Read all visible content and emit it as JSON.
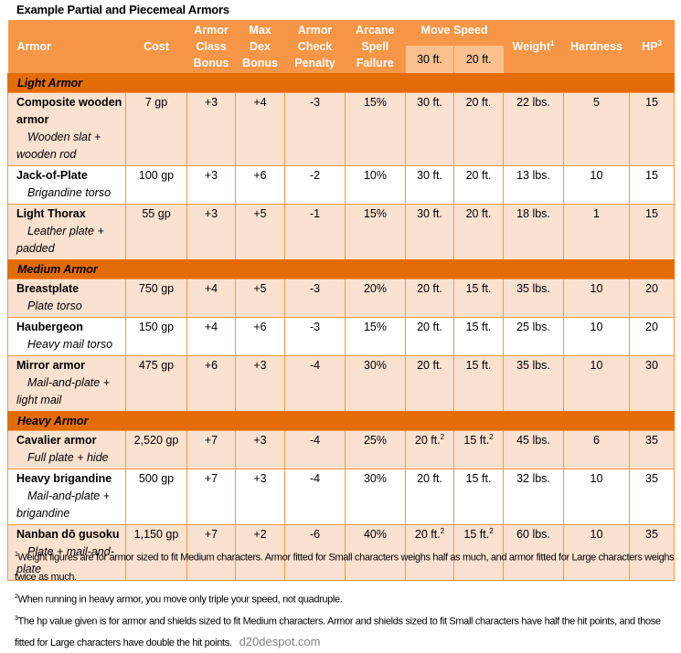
{
  "title": "Example Partial and Piecemeal Armors",
  "colors": {
    "header_bg": "#f79646",
    "subheader_bg": "#fac090",
    "section_bg": "#e36c09",
    "row_shaded": "#fbe2d0",
    "row_plain": "#ffffff",
    "border": "#f79646"
  },
  "headers": {
    "armor": "Armor",
    "cost": "Cost",
    "ac_bonus": [
      "Armor",
      "Class",
      "Bonus"
    ],
    "max_dex": [
      "Max",
      "Dex",
      "Bonus"
    ],
    "acp": [
      "Armor",
      "Check",
      "Penalty"
    ],
    "asf": [
      "Arcane",
      "Spell",
      "Failure"
    ],
    "move_speed": "Move Speed",
    "speed_30": "30 ft.",
    "speed_20": "20 ft.",
    "weight": "Weight",
    "weight_sup": "1",
    "hardness": "Hardness",
    "hp": "HP",
    "hp_sup": "3"
  },
  "sections": [
    {
      "label": "Light Armor",
      "rows": [
        {
          "name": "Composite wooden armor",
          "desc": "Wooden slat + wooden rod",
          "cost": "7 gp",
          "ac": "+3",
          "maxdex": "+4",
          "acp": "-3",
          "asf": "15%",
          "s30": "30 ft.",
          "s30_sup": "",
          "s20": "20 ft.",
          "s20_sup": "",
          "weight": "22 lbs.",
          "hardness": "5",
          "hp": "15"
        },
        {
          "name": "Jack-of-Plate",
          "desc": "Brigandine torso",
          "cost": "100 gp",
          "ac": "+3",
          "maxdex": "+6",
          "acp": "-2",
          "asf": "10%",
          "s30": "30 ft.",
          "s30_sup": "",
          "s20": "20 ft.",
          "s20_sup": "",
          "weight": "13 lbs.",
          "hardness": "10",
          "hp": "15"
        },
        {
          "name": "Light Thorax",
          "desc": "Leather plate + padded",
          "cost": "55 gp",
          "ac": "+3",
          "maxdex": "+5",
          "acp": "-1",
          "asf": "15%",
          "s30": "30 ft.",
          "s30_sup": "",
          "s20": "20 ft.",
          "s20_sup": "",
          "weight": "18 lbs.",
          "hardness": "1",
          "hp": "15"
        }
      ]
    },
    {
      "label": "Medium Armor",
      "rows": [
        {
          "name": "Breastplate",
          "desc": "Plate torso",
          "cost": "750 gp",
          "ac": "+4",
          "maxdex": "+5",
          "acp": "-3",
          "asf": "20%",
          "s30": "20 ft.",
          "s30_sup": "",
          "s20": "15 ft.",
          "s20_sup": "",
          "weight": "35 lbs.",
          "hardness": "10",
          "hp": "20"
        },
        {
          "name": "Haubergeon",
          "desc": "Heavy mail torso",
          "cost": "150 gp",
          "ac": "+4",
          "maxdex": "+6",
          "acp": "-3",
          "asf": "15%",
          "s30": "20 ft.",
          "s30_sup": "",
          "s20": "15 ft.",
          "s20_sup": "",
          "weight": "25 lbs.",
          "hardness": "10",
          "hp": "20"
        },
        {
          "name": "Mirror armor",
          "desc": "Mail-and-plate + light mail",
          "cost": "475 gp",
          "ac": "+6",
          "maxdex": "+3",
          "acp": "-4",
          "asf": "30%",
          "s30": "20 ft.",
          "s30_sup": "",
          "s20": "15 ft.",
          "s20_sup": "",
          "weight": "35 lbs.",
          "hardness": "10",
          "hp": "30"
        }
      ]
    },
    {
      "label": "Heavy Armor",
      "rows": [
        {
          "name": "Cavalier armor",
          "desc": "Full plate + hide",
          "cost": "2,520 gp",
          "ac": "+7",
          "maxdex": "+3",
          "acp": "-4",
          "asf": "25%",
          "s30": "20 ft.",
          "s30_sup": "2",
          "s20": "15 ft.",
          "s20_sup": "2",
          "weight": "45 lbs.",
          "hardness": "6",
          "hp": "35"
        },
        {
          "name": "Heavy brigandine",
          "desc": "Mail-and-plate + brigandine",
          "cost": "500 gp",
          "ac": "+7",
          "maxdex": "+3",
          "acp": "-4",
          "asf": "30%",
          "s30": "20 ft.",
          "s30_sup": "",
          "s20": "15 ft.",
          "s20_sup": "",
          "weight": "32 lbs.",
          "hardness": "10",
          "hp": "35"
        },
        {
          "name": "Nanban dō gusoku",
          "desc": "Plate + mail-and-plate",
          "cost": "1,150 gp",
          "ac": "+7",
          "maxdex": "+2",
          "acp": "-6",
          "asf": "40%",
          "s30": "20 ft.",
          "s30_sup": "2",
          "s20": "15 ft.",
          "s20_sup": "2",
          "weight": "60 lbs.",
          "hardness": "10",
          "hp": "35"
        }
      ]
    }
  ],
  "footnotes": [
    {
      "num": "1",
      "text": "Weight figures are for armor sized to fit Medium characters.  Armor fitted for Small characters weighs half as much, and armor fitted for Large characters weighs twice as much."
    },
    {
      "num": "2",
      "text": "When running in heavy armor, you move only triple your speed, not quadruple."
    },
    {
      "num": "3",
      "text": "The hp value given is for armor and shields sized to fit Medium characters.  Armor and shields sized to fit Small characters have half the hit points, and those fitted for Large characters have double the hit points."
    }
  ],
  "watermark": "d20despot.com"
}
